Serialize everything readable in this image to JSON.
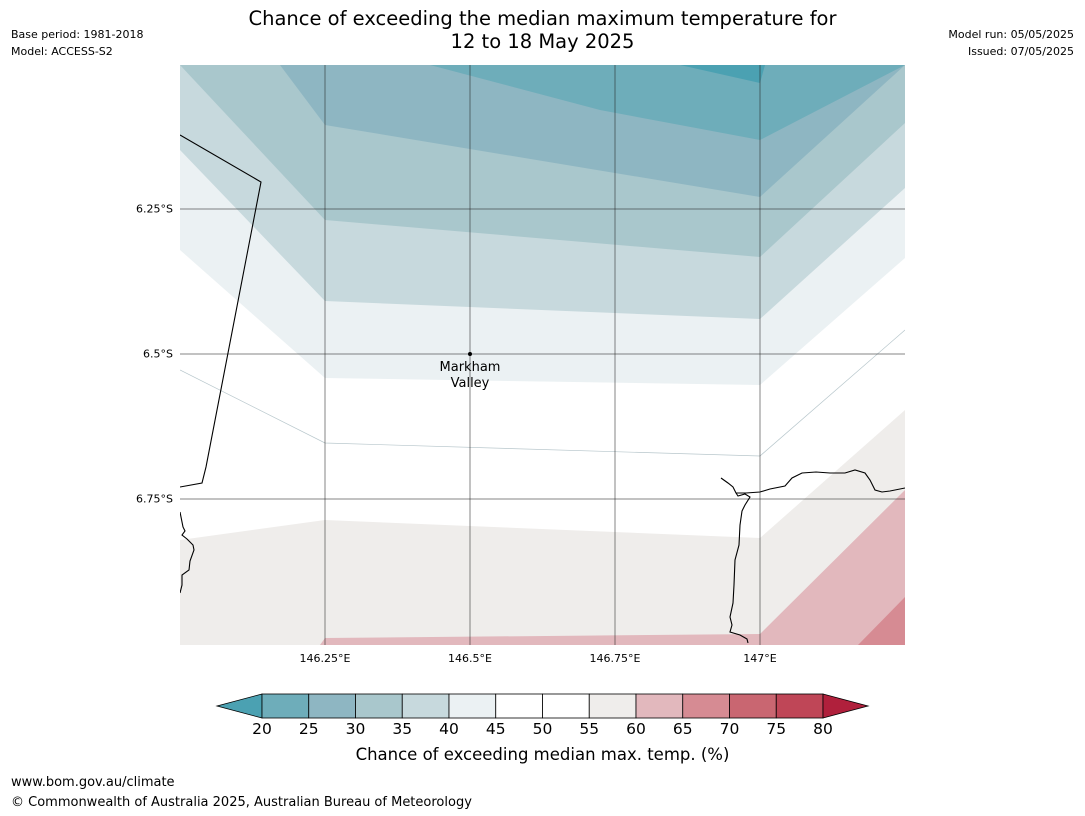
{
  "title_line1": "Chance of exceeding the median maximum temperature for",
  "title_line2": "12 to 18 May 2025",
  "meta": {
    "base_period": "Base period: 1981-2018",
    "model": "Model: ACCESS-S2",
    "model_run": "Model run: 05/05/2025",
    "issued": "Issued: 07/05/2025"
  },
  "axes": {
    "lat_labels": [
      "6.25°S",
      "6.5°S",
      "6.75°S"
    ],
    "lon_labels": [
      "146.25°E",
      "146.5°E",
      "146.75°E",
      "147°E"
    ]
  },
  "place": {
    "line1": "Markham",
    "line2": "Valley"
  },
  "colorbar": {
    "ticks": [
      "20",
      "25",
      "30",
      "35",
      "40",
      "45",
      "50",
      "55",
      "60",
      "65",
      "70",
      "75",
      "80"
    ],
    "colors": [
      "#4ba1b2",
      "#6eadba",
      "#8eb6c2",
      "#a9c7cc",
      "#c7d9dd",
      "#ebf1f3",
      "#ffffff",
      "#ffffff",
      "#efedeb",
      "#e2b8bd",
      "#d68b93",
      "#c96671",
      "#bf4657",
      "#b0203c"
    ],
    "label": "Chance of exceeding median max. temp. (%)"
  },
  "footer": {
    "url": "www.bom.gov.au/climate",
    "copyright": "© Commonwealth of Australia 2025, Australian Bureau of Meteorology"
  }
}
